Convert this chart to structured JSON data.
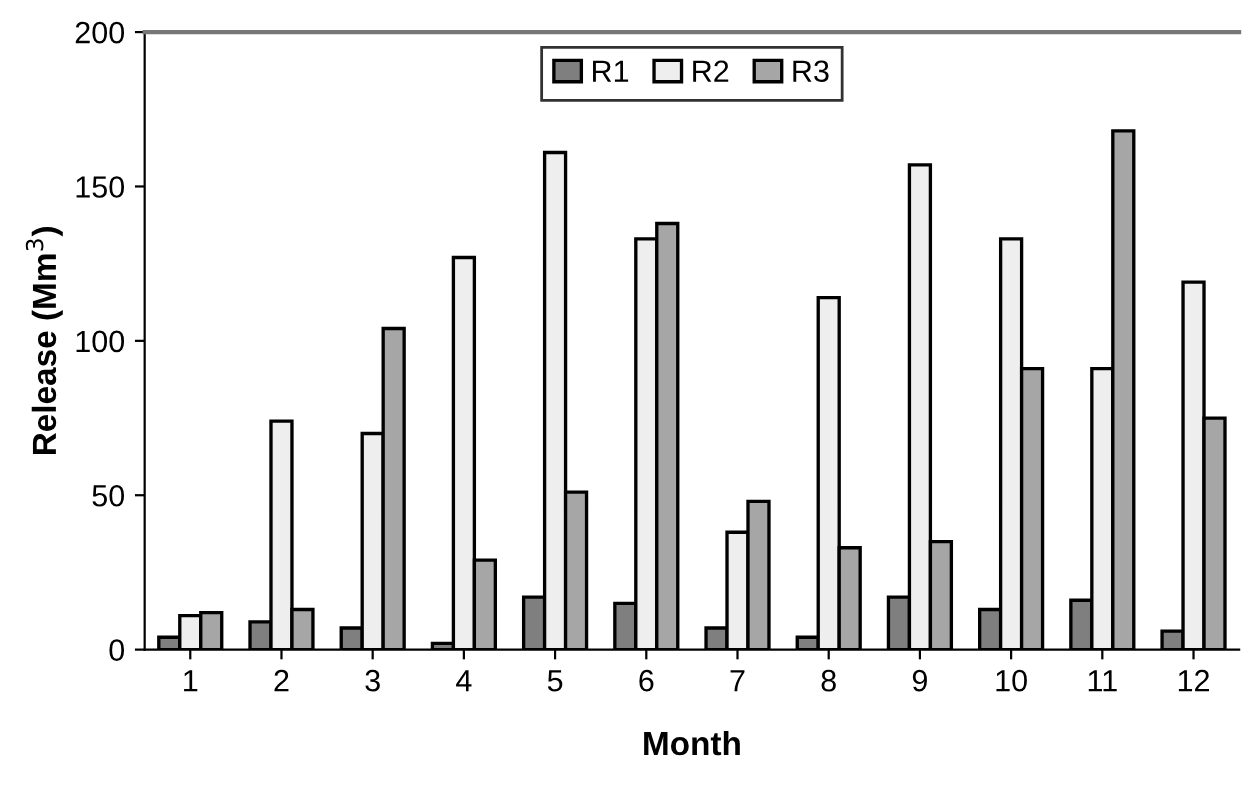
{
  "chart_data": {
    "type": "bar",
    "xlabel": "Month",
    "ylabel": "Release (Mm$^{3}$)",
    "categories": [
      "1",
      "2",
      "3",
      "4",
      "5",
      "6",
      "7",
      "8",
      "9",
      "10",
      "11",
      "12"
    ],
    "series": [
      {
        "name": "R1",
        "color": "#7f7f7f",
        "values": [
          4,
          9,
          7,
          2,
          17,
          15,
          7,
          4,
          17,
          13,
          16,
          6
        ]
      },
      {
        "name": "R2",
        "color": "#eeeeee",
        "values": [
          11,
          74,
          70,
          127,
          161,
          133,
          38,
          114,
          157,
          133,
          91,
          119
        ]
      },
      {
        "name": "R3",
        "color": "#a6a6a6",
        "values": [
          12,
          13,
          104,
          29,
          51,
          138,
          48,
          33,
          35,
          91,
          168,
          75
        ]
      }
    ],
    "ylim": [
      0,
      200
    ],
    "yticks": [
      0,
      50,
      100,
      150,
      200
    ],
    "grid": false,
    "legend": "top"
  }
}
